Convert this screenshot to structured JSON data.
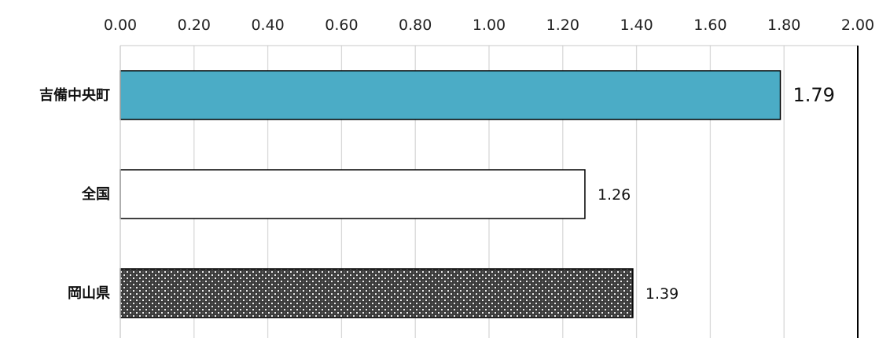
{
  "chart_data": {
    "type": "bar",
    "orientation": "horizontal",
    "title": "",
    "xlabel": "",
    "ylabel": "",
    "xlim": [
      0,
      2.0
    ],
    "ticks": [
      "0.00",
      "0.20",
      "0.40",
      "0.60",
      "0.80",
      "1.00",
      "1.20",
      "1.40",
      "1.60",
      "1.80",
      "2.00"
    ],
    "tick_values": [
      0,
      0.2,
      0.4,
      0.6,
      0.8,
      1.0,
      1.2,
      1.4,
      1.6,
      1.8,
      2.0
    ],
    "axis_position": "top",
    "grid": true,
    "categories": [
      "吉備中央町",
      "全国",
      "岡山県"
    ],
    "values": [
      1.79,
      1.26,
      1.39
    ],
    "data_labels": [
      "1.79",
      "1.26",
      "1.39"
    ],
    "bar_styles": [
      {
        "fill": "#4bacc6",
        "pattern": "solid"
      },
      {
        "fill": "#ffffff",
        "pattern": "solid"
      },
      {
        "fill": "#3a3a3a",
        "pattern": "dotted"
      }
    ],
    "grid_color": "#d9d9d9",
    "axis_color": "#000000"
  }
}
